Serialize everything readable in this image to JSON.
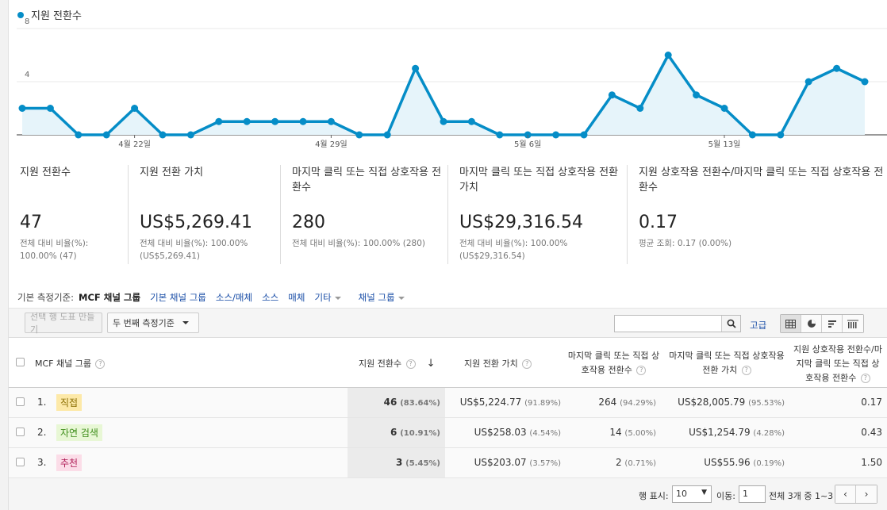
{
  "chart": {
    "legend": "지원 전환수",
    "colors": {
      "line": "#058dc7",
      "fill": "#e6f4fa"
    },
    "chart_data": {
      "type": "area",
      "series": [
        {
          "name": "지원 전환수",
          "values": [
            2,
            2,
            0,
            0,
            2,
            0,
            0,
            1,
            1,
            1,
            1,
            1,
            0,
            0,
            5,
            1,
            1,
            0,
            0,
            0,
            0,
            3,
            2,
            6,
            3,
            2,
            0,
            0,
            4,
            5,
            4
          ]
        }
      ],
      "yticks": [
        "8",
        "4"
      ],
      "ylim": [
        0,
        8
      ],
      "xticks": [
        {
          "label": "4월 22일",
          "index": 4
        },
        {
          "label": "4월 29일",
          "index": 11
        },
        {
          "label": "5월 6일",
          "index": 18
        },
        {
          "label": "5월 13일",
          "index": 25
        }
      ],
      "grid": true
    }
  },
  "cards": [
    {
      "name": "지원 전환수",
      "value": "47",
      "sub1": "전체 대비 비율(%):",
      "sub2": "100.00% (47)"
    },
    {
      "name": "지원 전환 가치",
      "value": "US$5,269.41",
      "sub1": "전체 대비 비율(%): 100.00%",
      "sub2": "(US$5,269.41)"
    },
    {
      "name": "마지막 클릭 또는 직접 상호작용 전환수",
      "value": "280",
      "sub1": "전체 대비 비율(%): 100.00% (280)",
      "sub2": ""
    },
    {
      "name": "마지막 클릭 또는 직접 상호작용 전환 가치",
      "value": "US$29,316.54",
      "sub1": "전체 대비 비율(%): 100.00%",
      "sub2": "(US$29,316.54)"
    },
    {
      "name": "지원 상호작용 전환수/마지막 클릭 또는 직접 상호작용 전환수",
      "value": "0.17",
      "sub1": "평균 조회: 0.17 (0.00%)",
      "sub2": ""
    }
  ],
  "dimensions": {
    "label": "기본 측정기준:",
    "active": "MCF 채널 그룹",
    "links": [
      "기본 채널 그룹",
      "소스/매체",
      "소스",
      "매체"
    ],
    "other": "기타",
    "channel_group": "채널 그룹"
  },
  "toolbar": {
    "create_tool": "선택 행 도표 만들기",
    "secondary": "두 번째 측정기준",
    "search_placeholder": "",
    "advanced": "고급"
  },
  "table": {
    "headers": {
      "dimension": "MCF 채널 그룹",
      "assisted": "지원 전환수",
      "assisted_value": "지원 전환 가치",
      "last_click": "마지막 클릭 또는 직접 상호작용 전환수",
      "last_click_value": "마지막 클릭 또는 직접 상호작용 전환 가치",
      "ratio": "지원 상호작용 전환수/마지막 클릭 또는 직접 상호작용 전환수"
    },
    "rows": [
      {
        "num": "1.",
        "channel": "직접",
        "tag_bg": "#fde9a8",
        "tag_fg": "#8a6d00",
        "assisted": "46",
        "assisted_pct": "(83.64%)",
        "value": "US$5,224.77",
        "value_pct": "(91.89%)",
        "last": "264",
        "last_pct": "(94.29%)",
        "last_value": "US$28,005.79",
        "last_value_pct": "(95.53%)",
        "ratio": "0.17"
      },
      {
        "num": "2.",
        "channel": "자연 검색",
        "tag_bg": "#e8f7d5",
        "tag_fg": "#3e8e1a",
        "assisted": "6",
        "assisted_pct": "(10.91%)",
        "value": "US$258.03",
        "value_pct": "(4.54%)",
        "last": "14",
        "last_pct": "(5.00%)",
        "last_value": "US$1,254.79",
        "last_value_pct": "(4.28%)",
        "ratio": "0.43"
      },
      {
        "num": "3.",
        "channel": "추천",
        "tag_bg": "#fbdde8",
        "tag_fg": "#b01f58",
        "assisted": "3",
        "assisted_pct": "(5.45%)",
        "value": "US$203.07",
        "value_pct": "(3.57%)",
        "last": "2",
        "last_pct": "(0.71%)",
        "last_value": "US$55.96",
        "last_value_pct": "(0.19%)",
        "ratio": "1.50"
      }
    ]
  },
  "pager": {
    "rows_label": "행 표시:",
    "rows_value": "10",
    "goto_label": "이동:",
    "goto_value": "1",
    "range": "전체 3개 중 1~3"
  }
}
